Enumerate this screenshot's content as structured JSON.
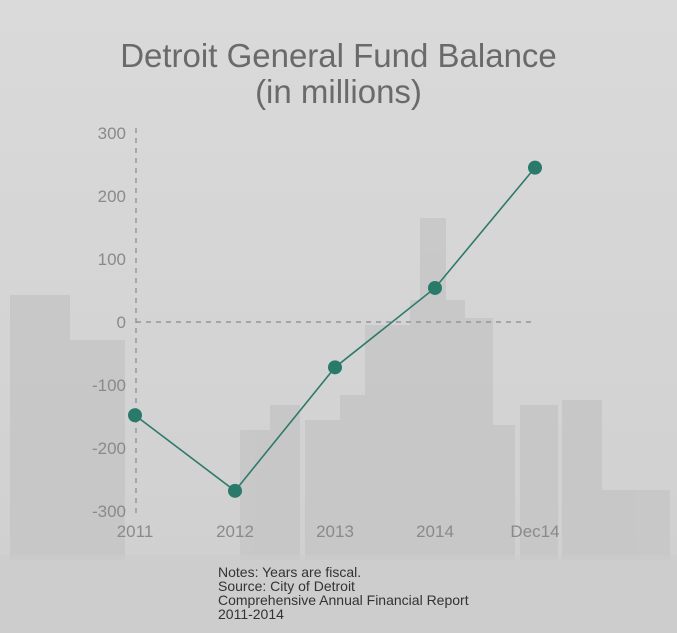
{
  "chart_data": {
    "type": "line",
    "title": "Detroit General Fund Balance",
    "subtitle": "(in millions)",
    "categories": [
      "2011",
      "2012",
      "2013",
      "2014",
      "Dec14"
    ],
    "values": [
      -148,
      -268,
      -72,
      54,
      245
    ],
    "ylim": [
      -300,
      300
    ],
    "yticks": [
      300,
      200,
      100,
      0,
      -100,
      -200,
      -300
    ],
    "colors": {
      "line": "#2d7a6c",
      "marker": "#2a7a6c",
      "zero_line": "#8a8a8a"
    }
  },
  "notes": [
    "Notes: Years are fiscal.",
    "Source: City of Detroit",
    "Comprehensive Annual Financial Report",
    "2011-2014"
  ]
}
